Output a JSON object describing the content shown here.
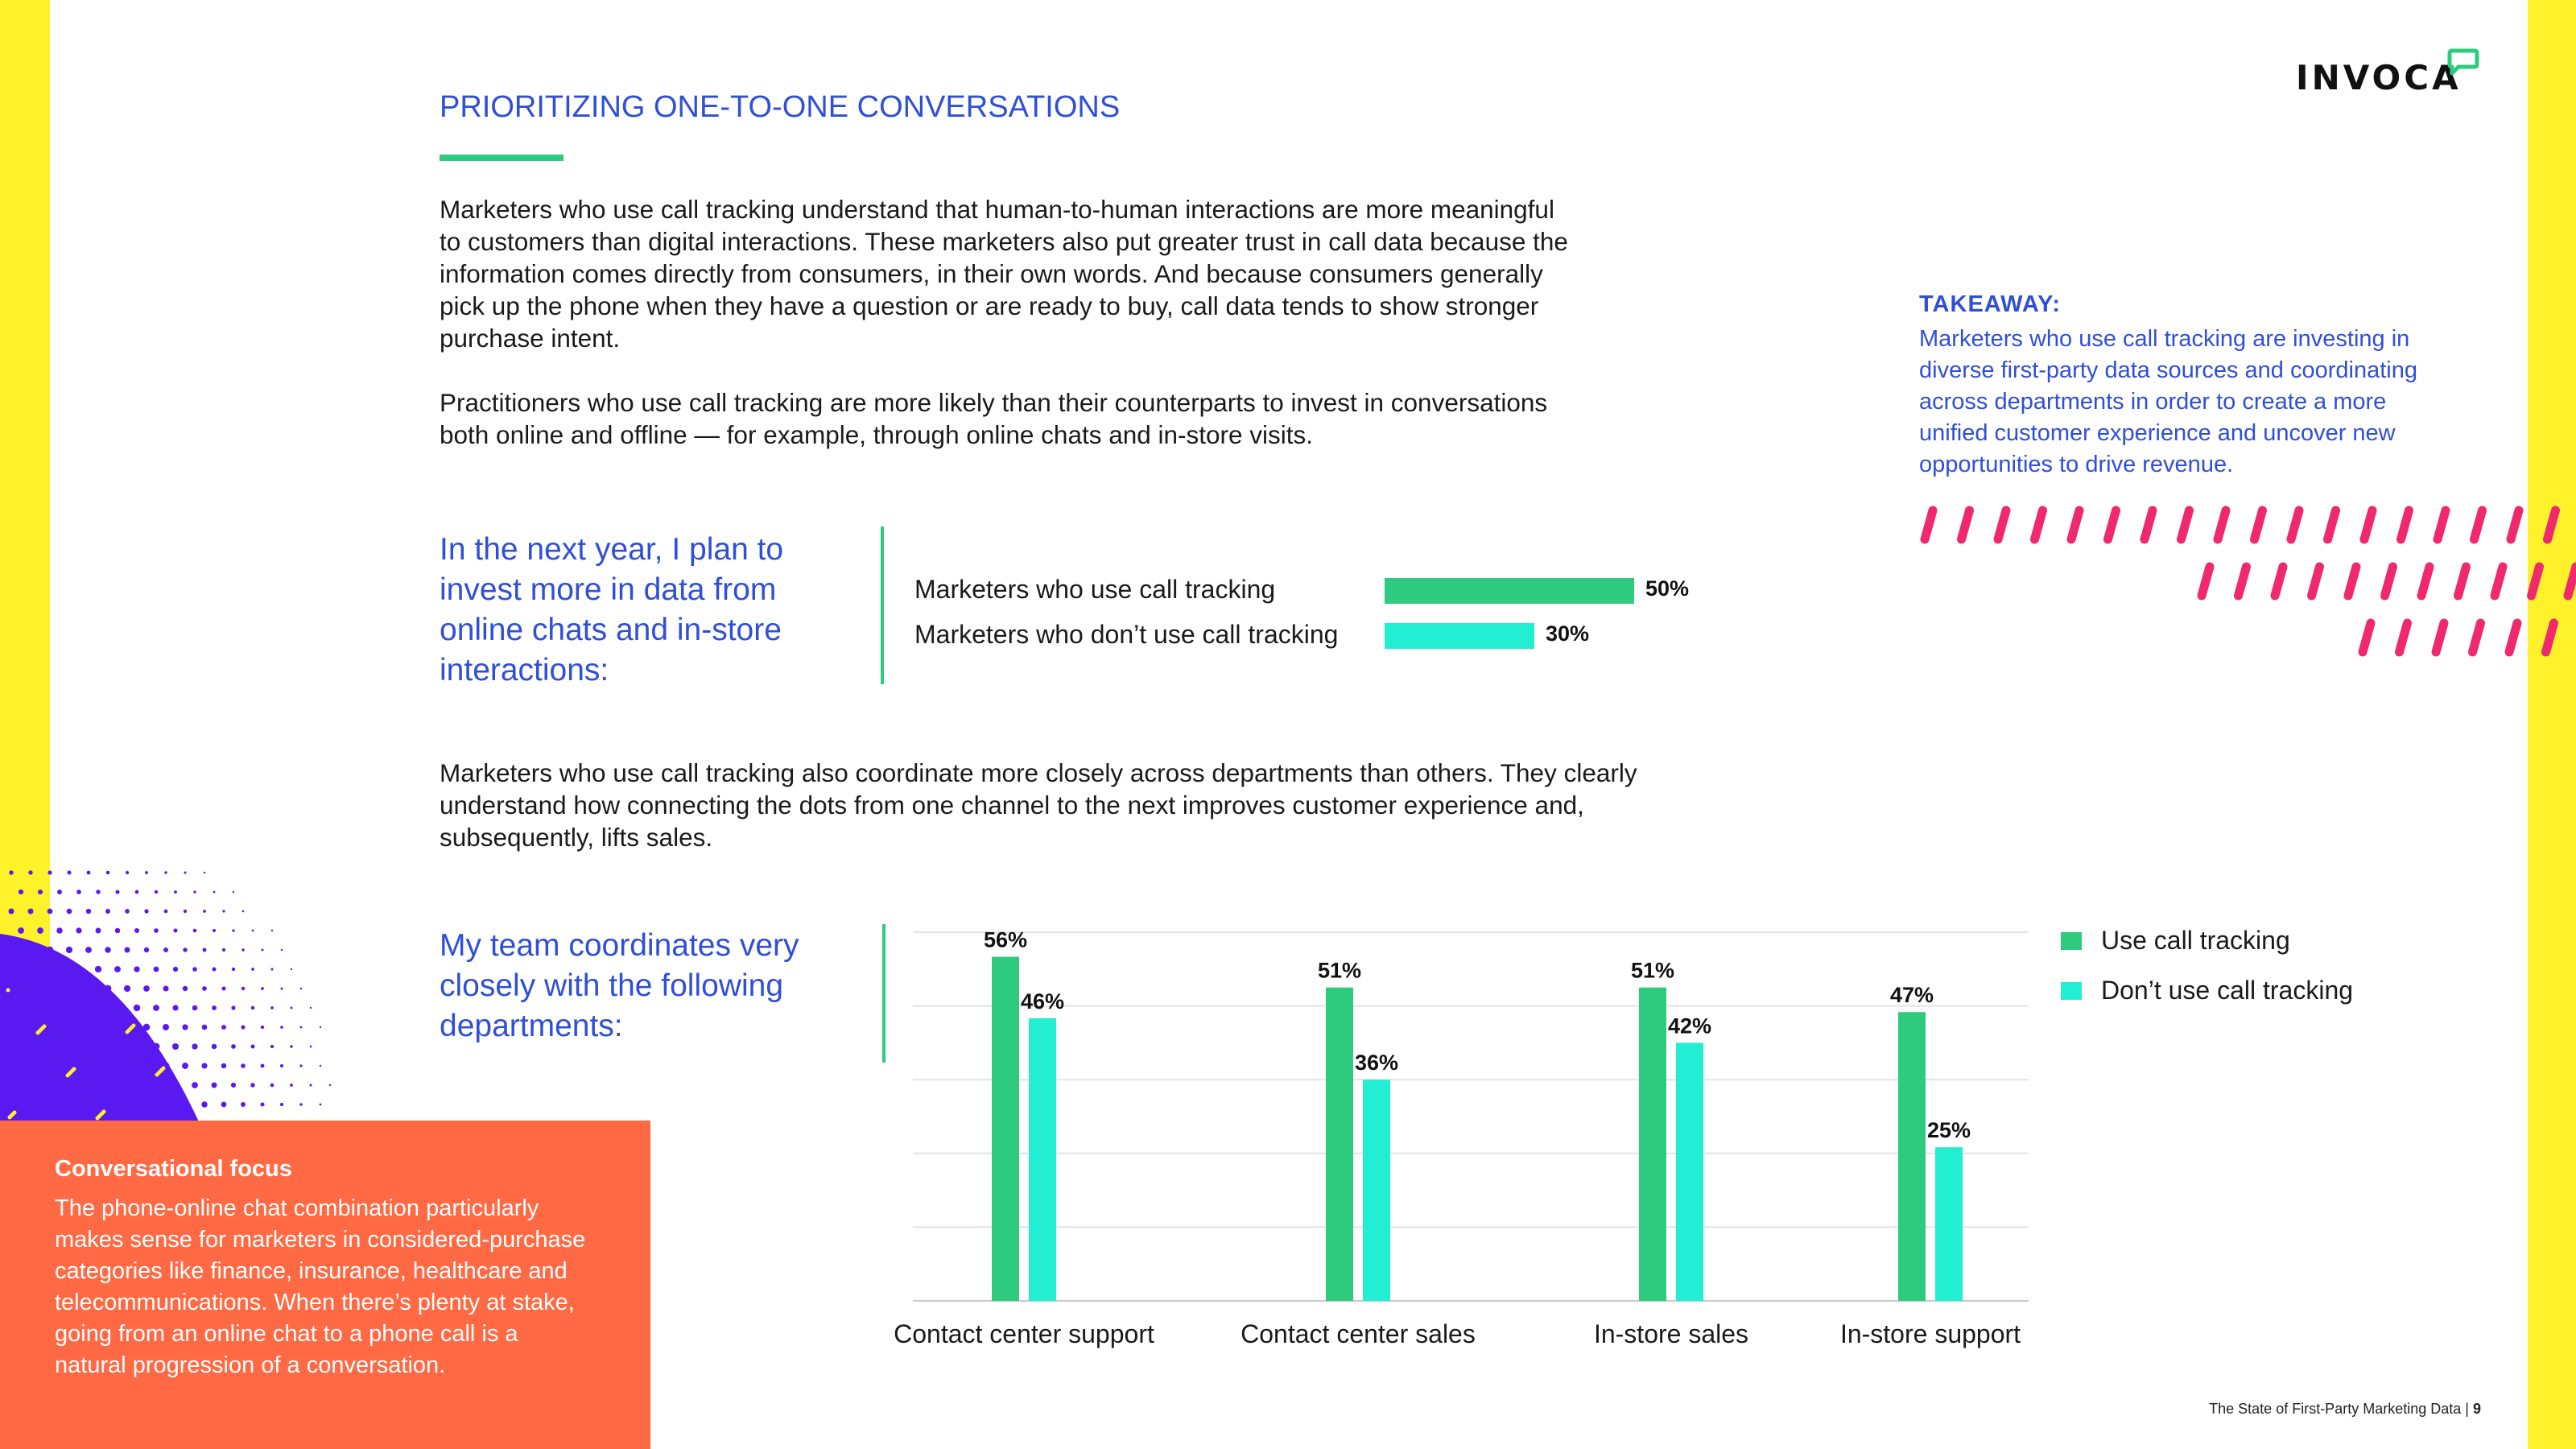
{
  "brand": {
    "logo_text": "INVOCA",
    "green": "#2ecb7e",
    "cyan": "#22eed3",
    "blue": "#2f4fd8",
    "yellow": "#fff12a",
    "orange": "#ff6a45",
    "pink": "#f0286e",
    "purple": "#5a19f0"
  },
  "header": {
    "section_title": "PRIORITIZING ONE-TO-ONE CONVERSATIONS"
  },
  "body": {
    "paragraph_1": "Marketers who use call tracking understand that human-to-human interactions are more meaningful\nto customers than digital interactions. These marketers also put greater trust in call data because the\ninformation comes directly from consumers, in their own words. And because consumers generally\npick up the phone when they have a question or are ready to buy, call data tends to show stronger\npurchase intent.",
    "paragraph_2": "Practitioners who use call tracking are more likely than their counterparts to invest in conversations\nboth online and offline — for example, through online chats and in-store visits.",
    "paragraph_3": "Marketers who use call tracking also coordinate more closely across departments than others. They clearly\nunderstand how connecting the dots from one channel to the next improves customer experience and,\nsubsequently, lifts sales."
  },
  "question_1": "In the next year, I plan to\ninvest more in data from\nonline chats and in-store\ninteractions:",
  "question_2": "My team coordinates very\nclosely with the following\ndepartments:",
  "takeaway": {
    "heading": "TAKEAWAY:",
    "body": "Marketers who use call tracking are investing in\ndiverse first-party data sources and coordinating\nacross departments in order to create a more\nunified customer experience and uncover new\nopportunities to drive revenue."
  },
  "sidebar_box": {
    "title": "Conversational focus",
    "body": "The phone-online chat combination particularly\nmakes sense for marketers in considered-purchase\ncategories like finance, insurance, healthcare and\ntelecommunications. When there’s plenty at stake,\ngoing from an online chat to a phone call is a\nnatural progression of a conversation."
  },
  "footer": {
    "title": "The State of First-Party Marketing Data",
    "separator": "|",
    "page_number": "9"
  },
  "chart_data": [
    {
      "type": "bar",
      "orientation": "horizontal",
      "title": "In the next year, I plan to invest more in data from online chats and in-store interactions:",
      "categories": [
        "Marketers who use call tracking",
        "Marketers who don’t use call tracking"
      ],
      "values": [
        50,
        30
      ],
      "value_labels": [
        "50%",
        "30%"
      ],
      "colors": [
        "#2ecb7e",
        "#22eed3"
      ],
      "xlim": [
        0,
        100
      ],
      "grid": false
    },
    {
      "type": "bar",
      "orientation": "vertical",
      "title": "My team coordinates very closely with the following departments:",
      "categories": [
        "Contact center support",
        "Contact center sales",
        "In-store sales",
        "In-store support"
      ],
      "series": [
        {
          "name": "Use call tracking",
          "values": [
            56,
            51,
            51,
            47
          ],
          "labels": [
            "56%",
            "51%",
            "51%",
            "47%"
          ],
          "color": "#2ecb7e"
        },
        {
          "name": "Don’t use call tracking",
          "values": [
            46,
            36,
            42,
            25
          ],
          "labels": [
            "46%",
            "36%",
            "42%",
            "25%"
          ],
          "color": "#22eed3"
        }
      ],
      "ylim": [
        0,
        60
      ],
      "grid": true,
      "legend": "right"
    }
  ]
}
